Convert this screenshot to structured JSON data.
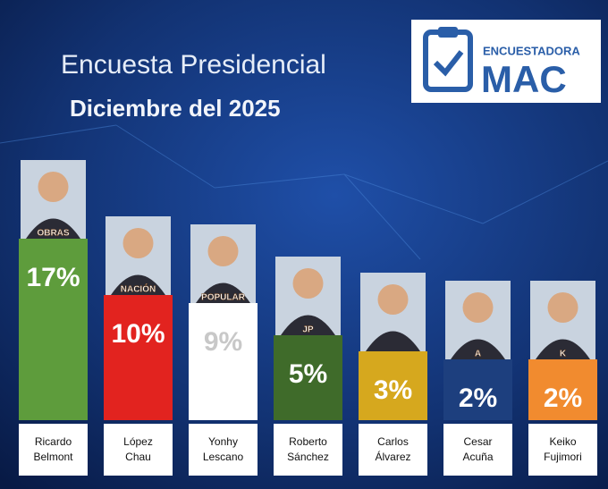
{
  "chart_data": {
    "type": "bar",
    "title": "Encuesta  Presidencial",
    "subtitle": "Diciembre del 2025",
    "categories": [
      "Ricardo Belmont",
      "López Chau",
      "Yonhy Lescano",
      "Roberto Sánchez",
      "Carlos Álvarez",
      "Cesar Acuña",
      "Keiko Fujimori"
    ],
    "party_labels": [
      "OBRAS",
      "NACIÓN",
      "POPULAR",
      "JP",
      null,
      "A",
      "K"
    ],
    "values": [
      17,
      10,
      9,
      5,
      3,
      2,
      2
    ],
    "value_labels": [
      "17%",
      "10%",
      "9%",
      "5%",
      "3%",
      "2%",
      "2%"
    ],
    "colors": [
      "#5e9c3c",
      "#e2231f",
      "#ffffff",
      "#3f6b2a",
      "#d6a81e",
      "#1d3f7e",
      "#f18b2f"
    ]
  },
  "logo": {
    "line1": "ENCUESTADORA",
    "line2": "MAC"
  }
}
